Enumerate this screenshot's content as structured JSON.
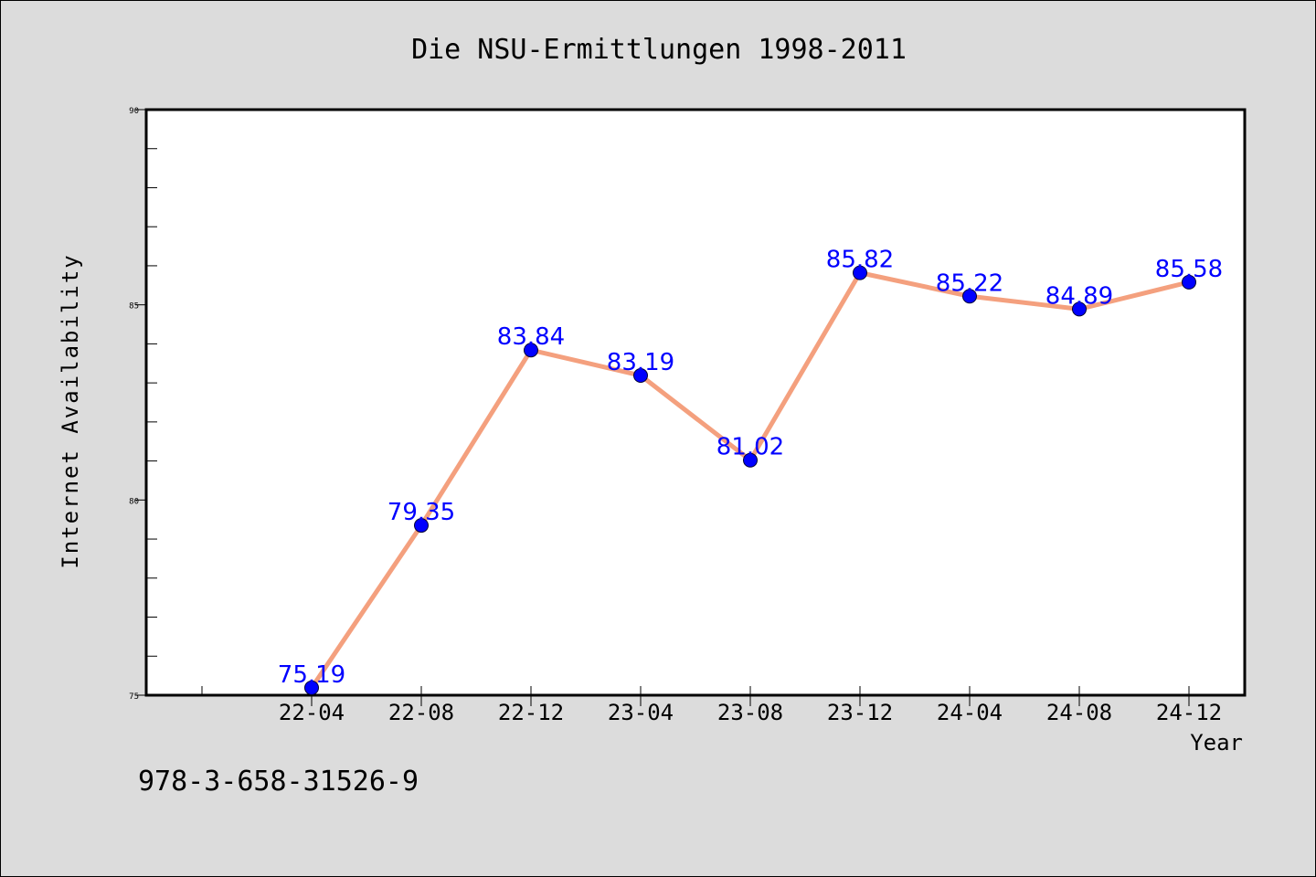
{
  "chart_data": {
    "type": "line",
    "title": "Die NSU-Ermittlungen 1998-2011",
    "xlabel": "Year",
    "ylabel": "Internet Availability",
    "categories": [
      "22-04",
      "22-08",
      "22-12",
      "23-04",
      "23-08",
      "23-12",
      "24-04",
      "24-08",
      "24-12"
    ],
    "series": [
      {
        "values": [
          75.19,
          79.35,
          83.84,
          83.19,
          81.02,
          85.82,
          85.22,
          84.89,
          85.58
        ]
      }
    ],
    "data_labels": [
      "75.19",
      "79.35",
      "83.84",
      "83.19",
      "81.02",
      "85.82",
      "85.22",
      "84.89",
      "85.58"
    ],
    "ylim": [
      75,
      90
    ],
    "y_ticks": [
      "75",
      "80",
      "85",
      "90"
    ],
    "grid": false,
    "line_color": "#f4a07e",
    "marker_color": "#0000ff",
    "label_color": "#0000ff",
    "background_color": "#dcdcdc",
    "plot_background_color": "#ffffff"
  },
  "footer": {
    "isbn": "978-3-658-31526-9"
  }
}
